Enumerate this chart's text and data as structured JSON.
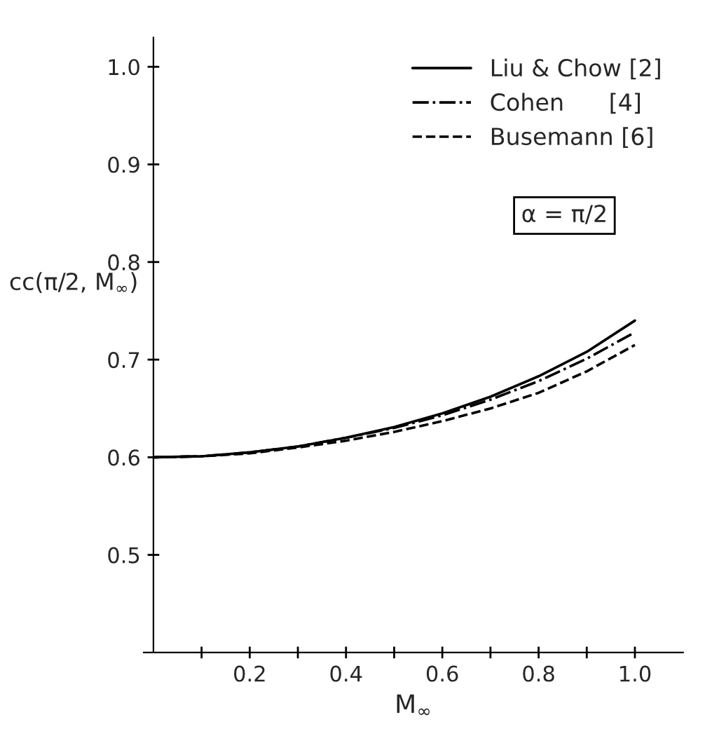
{
  "chart_data": {
    "type": "line",
    "xlabel": "M$_{∞}$",
    "ylabel": "cc(π/2, M$_{∞}$)",
    "x": [
      0,
      0.1,
      0.2,
      0.3,
      0.4,
      0.5,
      0.6,
      0.7,
      0.8,
      0.9,
      1.0
    ],
    "series": [
      {
        "name": "Liu & Chow [2]",
        "color": "#000000",
        "line_style": "solid",
        "values": [
          0.6,
          0.601,
          0.605,
          0.611,
          0.62,
          0.631,
          0.645,
          0.662,
          0.683,
          0.708,
          0.74
        ]
      },
      {
        "name": "Cohen      [4]",
        "color": "#000000",
        "line_style": "dashdot",
        "values": [
          0.6,
          0.601,
          0.605,
          0.611,
          0.62,
          0.63,
          0.643,
          0.659,
          0.678,
          0.701,
          0.728
        ]
      },
      {
        "name": "Busemann [6]",
        "color": "#000000",
        "line_style": "dashed",
        "values": [
          0.6,
          0.601,
          0.604,
          0.61,
          0.617,
          0.626,
          0.637,
          0.65,
          0.666,
          0.688,
          0.715
        ]
      }
    ],
    "xlim": [
      -0.02,
      1.1
    ],
    "ylim": [
      0.4,
      1.03
    ],
    "xticks": [
      {
        "value": 0.1,
        "label": null
      },
      {
        "value": 0.2,
        "label": "0.2"
      },
      {
        "value": 0.3,
        "label": null
      },
      {
        "value": 0.4,
        "label": "0.4"
      },
      {
        "value": 0.5,
        "label": null
      },
      {
        "value": 0.6,
        "label": "0.6"
      },
      {
        "value": 0.7,
        "label": null
      },
      {
        "value": 0.8,
        "label": "0.8"
      },
      {
        "value": 0.9,
        "label": null
      },
      {
        "value": 1.0,
        "label": "1.0"
      }
    ],
    "yticks": [
      {
        "value": 0.5,
        "label": "0.5"
      },
      {
        "value": 0.6,
        "label": "0.6"
      },
      {
        "value": 0.7,
        "label": "0.7"
      },
      {
        "value": 0.8,
        "label": "0.8"
      },
      {
        "value": 0.9,
        "label": "0.9"
      },
      {
        "value": 1.0,
        "label": "1.0"
      }
    ],
    "annotations": [
      "α = π/2"
    ],
    "legend": "top right",
    "grid": false
  }
}
